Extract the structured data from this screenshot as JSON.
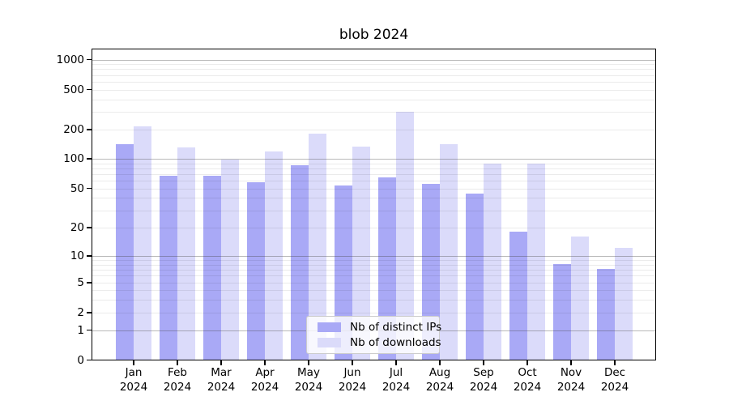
{
  "chart_data": {
    "type": "bar",
    "title": "blob 2024",
    "categories": [
      "Jan",
      "Feb",
      "Mar",
      "Apr",
      "May",
      "Jun",
      "Jul",
      "Aug",
      "Sep",
      "Oct",
      "Nov",
      "Dec"
    ],
    "year_label": "2024",
    "series": [
      {
        "name": "Nb of distinct IPs",
        "color": "#a9a9f6",
        "values": [
          140,
          66,
          66,
          57,
          85,
          53,
          64,
          55,
          44,
          18,
          8,
          7
        ]
      },
      {
        "name": "Nb of downloads",
        "color": "#dbdbfa",
        "values": [
          215,
          130,
          97,
          117,
          180,
          133,
          300,
          140,
          88,
          88,
          16,
          12
        ]
      }
    ],
    "y_ticks": [
      0,
      1,
      2,
      5,
      10,
      20,
      50,
      100,
      200,
      500,
      1000
    ],
    "yscale": "symlog",
    "ylim": [
      0,
      1300
    ],
    "grid": true,
    "legend_position": "lower center",
    "xlabel": "",
    "ylabel": ""
  },
  "colors": {
    "bar_ips": "#a9a9f6",
    "bar_downloads": "#dbdbfa",
    "grid_major": "#b3b3b3",
    "grid_minor": "#ebebeb",
    "spine": "#000000",
    "legend_border": "#cccccc",
    "background": "#ffffff"
  }
}
